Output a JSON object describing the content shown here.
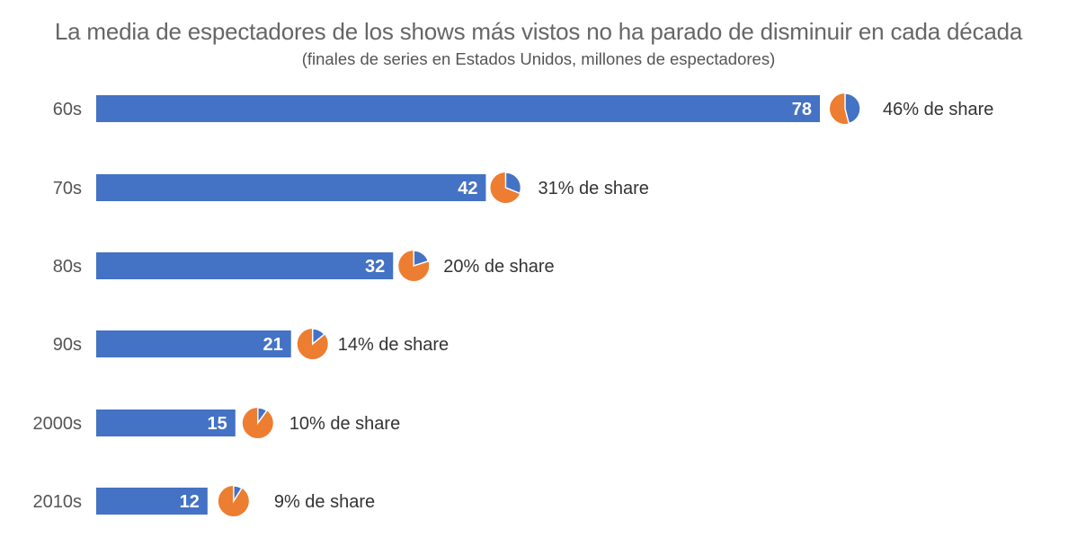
{
  "chart_data": {
    "type": "bar",
    "orientation": "horizontal",
    "title": "La media de espectadores de los shows más vistos no ha parado de disminuir en cada década",
    "subtitle": "(finales de series en Estados Unidos, millones de espectadores)",
    "categories": [
      "60s",
      "70s",
      "80s",
      "90s",
      "2000s",
      "2010s"
    ],
    "values": [
      78,
      42,
      32,
      21,
      15,
      12
    ],
    "share_percent": [
      46,
      31,
      20,
      14,
      10,
      9
    ],
    "share_labels": [
      "46% de share",
      "31% de share",
      "20% de share",
      "14% de share",
      "10% de share",
      "9% de share"
    ],
    "xlim": [
      0,
      78
    ],
    "grid": false,
    "legend": "none",
    "colors": {
      "bar": "#4472C4",
      "pie_share": "#4472C4",
      "pie_rest": "#ED7D31",
      "bar_label": "#FFFFFF"
    }
  }
}
